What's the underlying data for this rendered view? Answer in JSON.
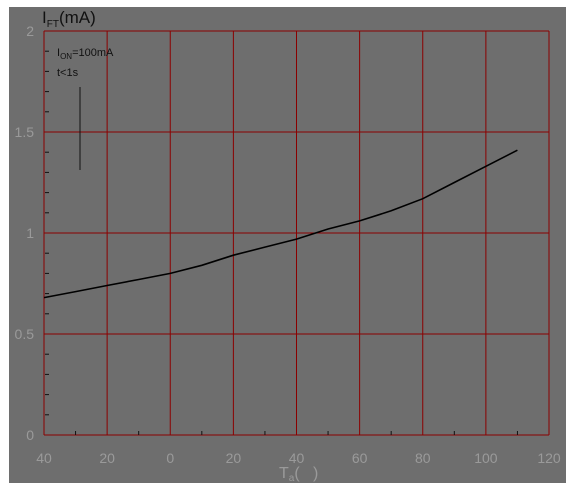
{
  "chart_data": {
    "type": "line",
    "ylabel": {
      "main": "I",
      "sub": "FT",
      "tail": "(mA)"
    },
    "xlabel": {
      "main": "T",
      "sub": "a",
      "tail": "(   )"
    },
    "annotation": {
      "line1_main": "I",
      "line1_sub": "ON",
      "line1_tail": "=100mA",
      "line2": "t<1s"
    },
    "x_ticks": [
      "40",
      "20",
      "0",
      "20",
      "40",
      "60",
      "80",
      "100",
      "120"
    ],
    "y_ticks": [
      "0",
      "0.5",
      "1",
      "1.5",
      "2"
    ],
    "xlim": [
      -40,
      120
    ],
    "ylim": [
      0,
      2
    ],
    "grid": true,
    "colors": {
      "background": "#6e6e6e",
      "grid": "#8b0000",
      "line": "#000000",
      "tick_text": "#9a9a9a",
      "label_text": "#111111",
      "minor_tick": "#111111"
    },
    "series": [
      {
        "x": [
          -40,
          -30,
          -20,
          -10,
          0,
          10,
          20,
          30,
          40,
          50,
          60,
          70,
          80,
          90,
          100,
          110
        ],
        "y": [
          0.68,
          0.71,
          0.74,
          0.77,
          0.8,
          0.84,
          0.89,
          0.93,
          0.97,
          1.02,
          1.06,
          1.11,
          1.17,
          1.25,
          1.33,
          1.41
        ]
      }
    ]
  }
}
